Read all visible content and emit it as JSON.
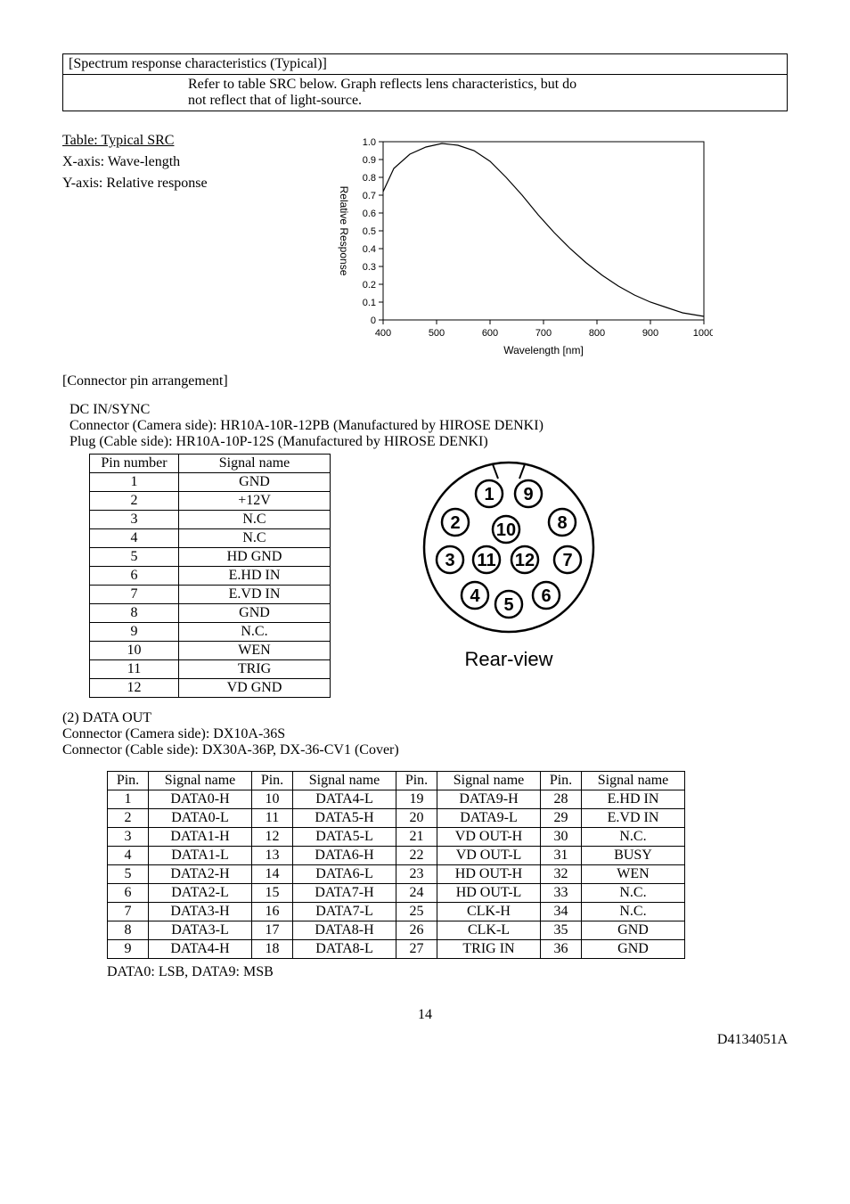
{
  "box": {
    "title": "[Spectrum response characteristics (Typical)]",
    "line1": "Refer to table SRC below. Graph reflects lens characteristics, but do",
    "line2": "not reflect that of light-source."
  },
  "src": {
    "heading": "Table: Typical SRC",
    "x_axis_label": "X-axis: Wave-length",
    "y_axis_label": "Y-axis: Relative response"
  },
  "chart": {
    "type": "line",
    "xlabel": "Wavelength [nm]",
    "ylabel": "Relative Response",
    "xlim": [
      400,
      1000
    ],
    "ylim": [
      0,
      1.0
    ],
    "xticks": [
      400,
      500,
      600,
      700,
      800,
      900,
      1000
    ],
    "yticks": [
      0,
      0.1,
      0.2,
      0.3,
      0.4,
      0.5,
      0.6,
      0.7,
      0.8,
      0.9,
      1.0
    ],
    "axis_fontsize": 11,
    "label_fontsize": 12,
    "line_color": "#000000",
    "line_width": 1.2,
    "background_color": "#ffffff",
    "axis_color": "#000000",
    "points": [
      [
        400,
        0.72
      ],
      [
        420,
        0.85
      ],
      [
        450,
        0.93
      ],
      [
        480,
        0.97
      ],
      [
        510,
        0.99
      ],
      [
        540,
        0.98
      ],
      [
        570,
        0.95
      ],
      [
        600,
        0.89
      ],
      [
        630,
        0.8
      ],
      [
        660,
        0.7
      ],
      [
        690,
        0.59
      ],
      [
        720,
        0.49
      ],
      [
        750,
        0.4
      ],
      [
        780,
        0.32
      ],
      [
        810,
        0.25
      ],
      [
        840,
        0.19
      ],
      [
        870,
        0.14
      ],
      [
        900,
        0.1
      ],
      [
        930,
        0.07
      ],
      [
        960,
        0.04
      ],
      [
        1000,
        0.02
      ]
    ]
  },
  "connector_heading": "[Connector pin arrangement]",
  "dcin": {
    "title": "DC IN/SYNC",
    "line1": "Connector (Camera side): HR10A-10R-12PB    (Manufactured by HIROSE DENKI)",
    "line2": "Plug (Cable side): HR10A-10P-12S    (Manufactured by HIROSE DENKI)"
  },
  "pin_table": {
    "headers": [
      "Pin number",
      "Signal name"
    ],
    "rows": [
      [
        "1",
        "GND"
      ],
      [
        "2",
        "+12V"
      ],
      [
        "3",
        "N.C"
      ],
      [
        "4",
        "N.C"
      ],
      [
        "5",
        "HD GND"
      ],
      [
        "6",
        "E.HD IN"
      ],
      [
        "7",
        "E.VD IN"
      ],
      [
        "8",
        "GND"
      ],
      [
        "9",
        "N.C."
      ],
      [
        "10",
        "WEN"
      ],
      [
        "11",
        "TRIG"
      ],
      [
        "12",
        "VD GND"
      ]
    ]
  },
  "rear_view": {
    "label": "Rear-view",
    "pins": [
      1,
      2,
      3,
      4,
      5,
      6,
      7,
      8,
      9,
      10,
      11,
      12
    ],
    "circle_color": "#000000",
    "text_color": "#000000",
    "font": "Arial"
  },
  "dataout": {
    "title": "(2) DATA OUT",
    "line1": "Connector (Camera side): DX10A-36S",
    "line2": "Connector (Cable side): DX30A-36P, DX-36-CV1 (Cover)",
    "headers": [
      "Pin.",
      "Signal name",
      "Pin.",
      "Signal name",
      "Pin.",
      "Signal name",
      "Pin.",
      "Signal name"
    ],
    "rows": [
      [
        "1",
        "DATA0-H",
        "10",
        "DATA4-L",
        "19",
        "DATA9-H",
        "28",
        "E.HD IN"
      ],
      [
        "2",
        "DATA0-L",
        "11",
        "DATA5-H",
        "20",
        "DATA9-L",
        "29",
        "E.VD IN"
      ],
      [
        "3",
        "DATA1-H",
        "12",
        "DATA5-L",
        "21",
        "VD OUT-H",
        "30",
        "N.C."
      ],
      [
        "4",
        "DATA1-L",
        "13",
        "DATA6-H",
        "22",
        "VD OUT-L",
        "31",
        "BUSY"
      ],
      [
        "5",
        "DATA2-H",
        "14",
        "DATA6-L",
        "23",
        "HD OUT-H",
        "32",
        "WEN"
      ],
      [
        "6",
        "DATA2-L",
        "15",
        "DATA7-H",
        "24",
        "HD OUT-L",
        "33",
        "N.C."
      ],
      [
        "7",
        "DATA3-H",
        "16",
        "DATA7-L",
        "25",
        "CLK-H",
        "34",
        "N.C."
      ],
      [
        "8",
        "DATA3-L",
        "17",
        "DATA8-H",
        "26",
        "CLK-L",
        "35",
        "GND"
      ],
      [
        "9",
        "DATA4-H",
        "18",
        "DATA8-L",
        "27",
        "TRIG IN",
        "36",
        "GND"
      ]
    ],
    "footnote": "DATA0: LSB, DATA9: MSB"
  },
  "page_number": "14",
  "doc_id": "D4134051A"
}
